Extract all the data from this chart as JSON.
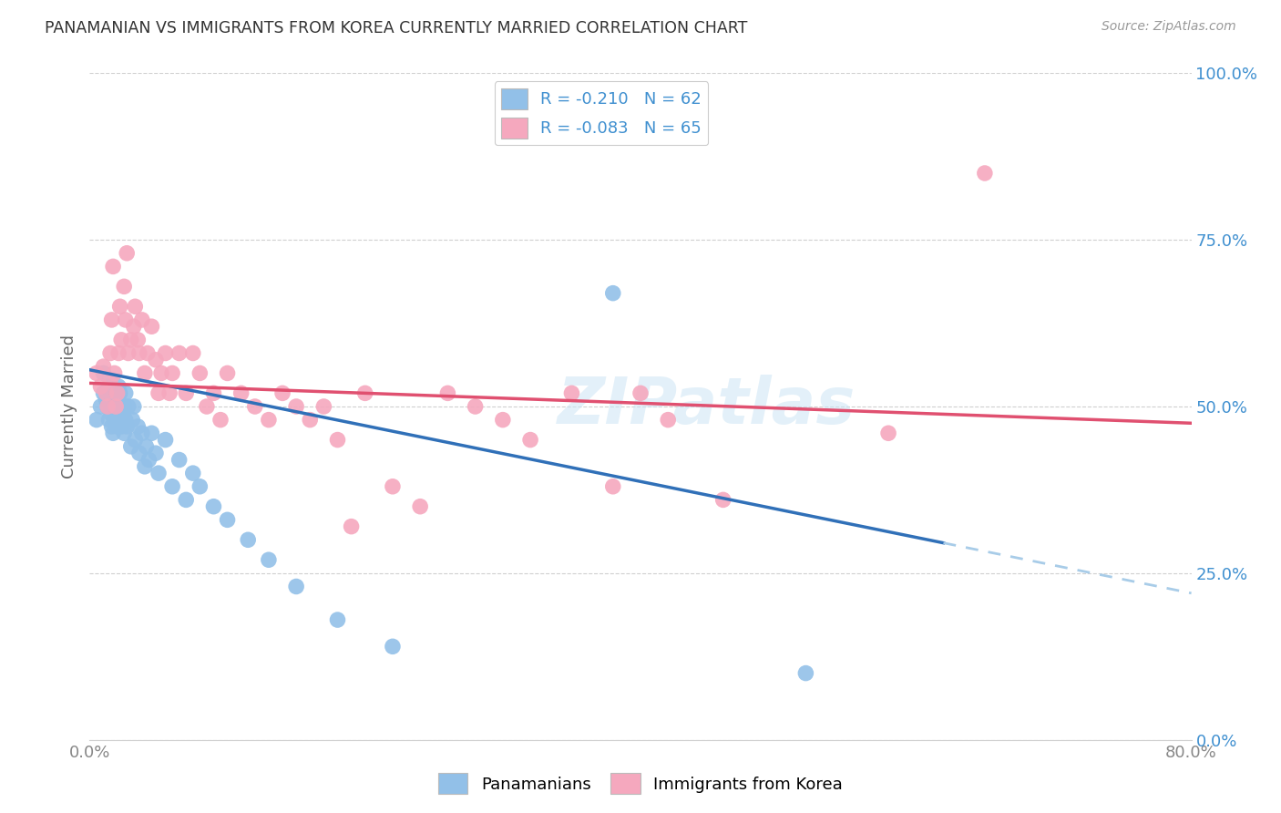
{
  "title": "PANAMANIAN VS IMMIGRANTS FROM KOREA CURRENTLY MARRIED CORRELATION CHART",
  "source": "Source: ZipAtlas.com",
  "ylabel": "Currently Married",
  "yticks": [
    "0.0%",
    "25.0%",
    "50.0%",
    "75.0%",
    "100.0%"
  ],
  "ytick_vals": [
    0.0,
    0.25,
    0.5,
    0.75,
    1.0
  ],
  "legend_line1": "R = -0.210   N = 62",
  "legend_line2": "R = -0.083   N = 65",
  "legend_label_blue": "Panamanians",
  "legend_label_pink": "Immigrants from Korea",
  "blue_color": "#92C0E8",
  "pink_color": "#F5A8BE",
  "trendline_blue": "#3070B8",
  "trendline_pink": "#E05070",
  "trendline_blue_dash": "#A8CCE8",
  "watermark": "ZIPatlas",
  "xmin": 0.0,
  "xmax": 0.8,
  "ymin": 0.0,
  "ymax": 1.0,
  "blue_trendline_x0": 0.0,
  "blue_trendline_y0": 0.555,
  "blue_trendline_x1": 0.8,
  "blue_trendline_y1": 0.22,
  "blue_trendline_solid_end": 0.62,
  "pink_trendline_x0": 0.0,
  "pink_trendline_y0": 0.535,
  "pink_trendline_x1": 0.8,
  "pink_trendline_y1": 0.475,
  "blue_scatter_x": [
    0.005,
    0.008,
    0.01,
    0.01,
    0.012,
    0.013,
    0.013,
    0.014,
    0.014,
    0.015,
    0.015,
    0.015,
    0.016,
    0.016,
    0.017,
    0.017,
    0.018,
    0.018,
    0.019,
    0.02,
    0.02,
    0.021,
    0.021,
    0.022,
    0.022,
    0.023,
    0.023,
    0.024,
    0.025,
    0.025,
    0.026,
    0.026,
    0.027,
    0.028,
    0.03,
    0.031,
    0.032,
    0.033,
    0.035,
    0.036,
    0.038,
    0.04,
    0.041,
    0.043,
    0.045,
    0.048,
    0.05,
    0.055,
    0.06,
    0.065,
    0.07,
    0.075,
    0.08,
    0.09,
    0.1,
    0.115,
    0.13,
    0.15,
    0.18,
    0.22,
    0.38,
    0.52
  ],
  "blue_scatter_y": [
    0.48,
    0.5,
    0.52,
    0.55,
    0.51,
    0.5,
    0.52,
    0.53,
    0.48,
    0.49,
    0.51,
    0.53,
    0.47,
    0.5,
    0.52,
    0.46,
    0.48,
    0.52,
    0.5,
    0.47,
    0.51,
    0.49,
    0.53,
    0.48,
    0.52,
    0.5,
    0.47,
    0.49,
    0.46,
    0.5,
    0.48,
    0.52,
    0.47,
    0.5,
    0.44,
    0.48,
    0.5,
    0.45,
    0.47,
    0.43,
    0.46,
    0.41,
    0.44,
    0.42,
    0.46,
    0.43,
    0.4,
    0.45,
    0.38,
    0.42,
    0.36,
    0.4,
    0.38,
    0.35,
    0.33,
    0.3,
    0.27,
    0.23,
    0.18,
    0.14,
    0.67,
    0.1
  ],
  "pink_scatter_x": [
    0.005,
    0.008,
    0.01,
    0.012,
    0.013,
    0.015,
    0.015,
    0.016,
    0.017,
    0.018,
    0.019,
    0.02,
    0.021,
    0.022,
    0.023,
    0.025,
    0.026,
    0.027,
    0.028,
    0.03,
    0.032,
    0.033,
    0.035,
    0.036,
    0.038,
    0.04,
    0.042,
    0.045,
    0.048,
    0.05,
    0.052,
    0.055,
    0.058,
    0.06,
    0.065,
    0.07,
    0.075,
    0.08,
    0.085,
    0.09,
    0.095,
    0.1,
    0.11,
    0.12,
    0.13,
    0.14,
    0.15,
    0.16,
    0.17,
    0.18,
    0.19,
    0.2,
    0.22,
    0.24,
    0.26,
    0.28,
    0.3,
    0.32,
    0.35,
    0.38,
    0.4,
    0.42,
    0.46,
    0.58,
    0.65
  ],
  "pink_scatter_y": [
    0.55,
    0.53,
    0.56,
    0.52,
    0.5,
    0.58,
    0.54,
    0.63,
    0.71,
    0.55,
    0.5,
    0.52,
    0.58,
    0.65,
    0.6,
    0.68,
    0.63,
    0.73,
    0.58,
    0.6,
    0.62,
    0.65,
    0.6,
    0.58,
    0.63,
    0.55,
    0.58,
    0.62,
    0.57,
    0.52,
    0.55,
    0.58,
    0.52,
    0.55,
    0.58,
    0.52,
    0.58,
    0.55,
    0.5,
    0.52,
    0.48,
    0.55,
    0.52,
    0.5,
    0.48,
    0.52,
    0.5,
    0.48,
    0.5,
    0.45,
    0.32,
    0.52,
    0.38,
    0.35,
    0.52,
    0.5,
    0.48,
    0.45,
    0.52,
    0.38,
    0.52,
    0.48,
    0.36,
    0.46,
    0.85
  ]
}
